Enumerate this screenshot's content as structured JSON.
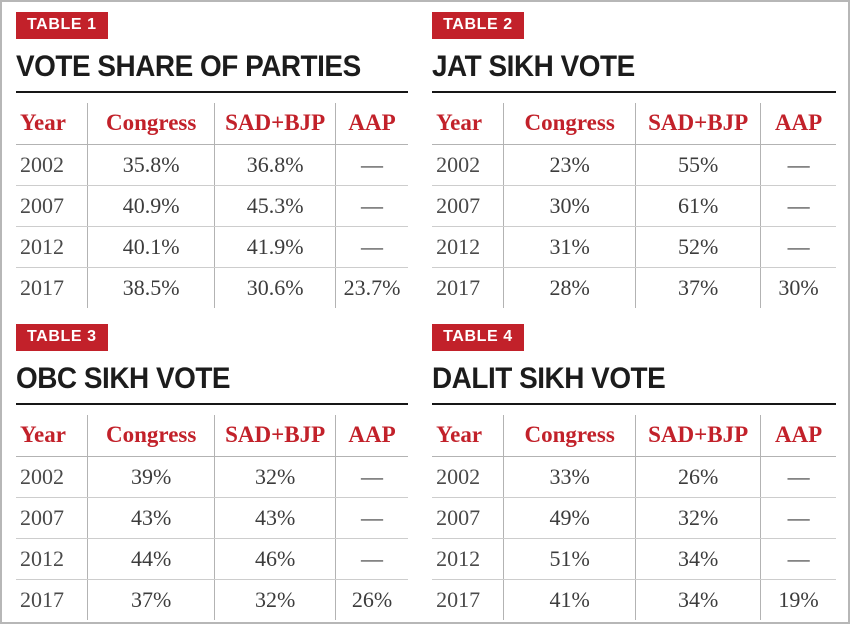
{
  "colors": {
    "accent_red": "#c2212a",
    "title_black": "#1c1c1c",
    "text_dark": "#3c3c3c",
    "divider_gray": "#b3b3b3"
  },
  "chart_data": [
    {
      "type": "table",
      "badge": "TABLE 1",
      "title": "VOTE SHARE OF PARTIES",
      "columns": [
        "Year",
        "Congress",
        "SAD+BJP",
        "AAP"
      ],
      "rows": [
        [
          "2002",
          "35.8%",
          "36.8%",
          "—"
        ],
        [
          "2007",
          "40.9%",
          "45.3%",
          "—"
        ],
        [
          "2012",
          "40.1%",
          "41.9%",
          "—"
        ],
        [
          "2017",
          "38.5%",
          "30.6%",
          "23.7%"
        ]
      ]
    },
    {
      "type": "table",
      "badge": "TABLE 2",
      "title": "JAT SIKH VOTE",
      "columns": [
        "Year",
        "Congress",
        "SAD+BJP",
        "AAP"
      ],
      "rows": [
        [
          "2002",
          "23%",
          "55%",
          "—"
        ],
        [
          "2007",
          "30%",
          "61%",
          "—"
        ],
        [
          "2012",
          "31%",
          "52%",
          "—"
        ],
        [
          "2017",
          "28%",
          "37%",
          "30%"
        ]
      ]
    },
    {
      "type": "table",
      "badge": "TABLE 3",
      "title": "OBC SIKH VOTE",
      "columns": [
        "Year",
        "Congress",
        "SAD+BJP",
        "AAP"
      ],
      "rows": [
        [
          "2002",
          "39%",
          "32%",
          "—"
        ],
        [
          "2007",
          "43%",
          "43%",
          "—"
        ],
        [
          "2012",
          "44%",
          "46%",
          "—"
        ],
        [
          "2017",
          "37%",
          "32%",
          "26%"
        ]
      ]
    },
    {
      "type": "table",
      "badge": "TABLE 4",
      "title": "DALIT SIKH VOTE",
      "columns": [
        "Year",
        "Congress",
        "SAD+BJP",
        "AAP"
      ],
      "rows": [
        [
          "2002",
          "33%",
          "26%",
          "—"
        ],
        [
          "2007",
          "49%",
          "32%",
          "—"
        ],
        [
          "2012",
          "51%",
          "34%",
          "—"
        ],
        [
          "2017",
          "41%",
          "34%",
          "19%"
        ]
      ]
    }
  ]
}
